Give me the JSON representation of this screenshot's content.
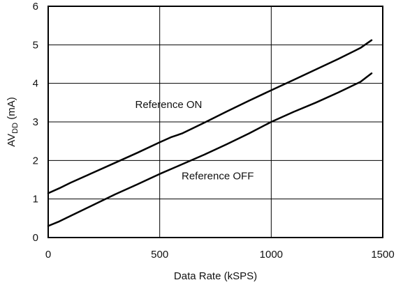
{
  "chart_data": {
    "type": "line",
    "title": "",
    "xlabel": "Data Rate (kSPS)",
    "ylabel": {
      "prefix": "AV",
      "subscript": "DD",
      "suffix": " (mA)"
    },
    "xlim": [
      0,
      1500
    ],
    "ylim": [
      0,
      6
    ],
    "x_ticks": [
      0,
      500,
      1000,
      1500
    ],
    "y_ticks": [
      0,
      1,
      2,
      3,
      4,
      5,
      6
    ],
    "x_tick_labels": [
      "0",
      "500",
      "1000",
      "1500"
    ],
    "y_tick_labels": [
      "0",
      "1",
      "2",
      "3",
      "4",
      "5",
      "6"
    ],
    "grid": true,
    "legend": "none",
    "series": [
      {
        "name": "Reference ON",
        "x": [
          0,
          50,
          100,
          200,
          300,
          400,
          500,
          550,
          600,
          700,
          800,
          900,
          1000,
          1100,
          1200,
          1300,
          1400,
          1450
        ],
        "y": [
          1.15,
          1.28,
          1.42,
          1.68,
          1.94,
          2.2,
          2.47,
          2.6,
          2.7,
          2.98,
          3.27,
          3.55,
          3.82,
          4.09,
          4.36,
          4.63,
          4.92,
          5.12
        ]
      },
      {
        "name": "Reference OFF",
        "x": [
          0,
          50,
          100,
          200,
          300,
          400,
          500,
          600,
          700,
          800,
          900,
          1000,
          1100,
          1200,
          1300,
          1400,
          1450
        ],
        "y": [
          0.3,
          0.42,
          0.56,
          0.84,
          1.12,
          1.38,
          1.65,
          1.9,
          2.15,
          2.42,
          2.7,
          3.0,
          3.26,
          3.5,
          3.76,
          4.04,
          4.26
        ]
      }
    ],
    "annotations": [
      {
        "text": "Reference ON",
        "x": 540,
        "y": 3.45
      },
      {
        "text": "Reference OFF",
        "x": 760,
        "y": 1.6
      }
    ],
    "line_color": "#000000",
    "grid_color": "#000000"
  }
}
